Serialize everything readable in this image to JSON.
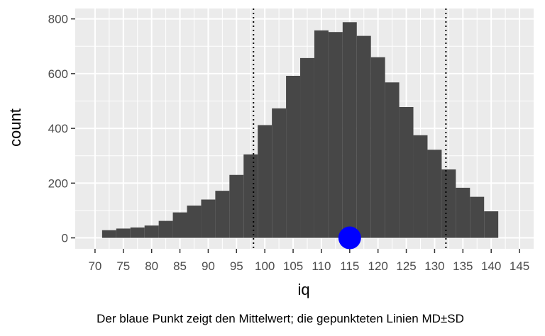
{
  "chart_data": {
    "type": "bar",
    "subtype": "histogram",
    "xlabel": "iq",
    "ylabel": "count",
    "caption": "Der blaue Punkt zeigt den Mittelwert; die gepunkteten Linien MD±SD",
    "xlim": [
      66.5,
      147.5
    ],
    "ylim": [
      -40,
      838
    ],
    "bin_width": 2.5,
    "bins": [
      {
        "x": 72.5,
        "count": 28
      },
      {
        "x": 75.0,
        "count": 34
      },
      {
        "x": 77.5,
        "count": 38
      },
      {
        "x": 80.0,
        "count": 45
      },
      {
        "x": 82.5,
        "count": 62
      },
      {
        "x": 85.0,
        "count": 93
      },
      {
        "x": 87.5,
        "count": 118
      },
      {
        "x": 90.0,
        "count": 140
      },
      {
        "x": 92.5,
        "count": 172
      },
      {
        "x": 95.0,
        "count": 230
      },
      {
        "x": 97.5,
        "count": 305
      },
      {
        "x": 100.0,
        "count": 412
      },
      {
        "x": 102.5,
        "count": 473
      },
      {
        "x": 105.0,
        "count": 592
      },
      {
        "x": 107.5,
        "count": 657
      },
      {
        "x": 110.0,
        "count": 758
      },
      {
        "x": 112.5,
        "count": 752
      },
      {
        "x": 115.0,
        "count": 788
      },
      {
        "x": 117.5,
        "count": 738
      },
      {
        "x": 120.0,
        "count": 660
      },
      {
        "x": 122.5,
        "count": 568
      },
      {
        "x": 125.0,
        "count": 478
      },
      {
        "x": 127.5,
        "count": 375
      },
      {
        "x": 130.0,
        "count": 322
      },
      {
        "x": 132.5,
        "count": 250
      },
      {
        "x": 135.0,
        "count": 183
      },
      {
        "x": 137.5,
        "count": 150
      },
      {
        "x": 140.0,
        "count": 97
      }
    ],
    "x_ticks": [
      70,
      75,
      80,
      85,
      90,
      95,
      100,
      105,
      110,
      115,
      120,
      125,
      130,
      135,
      140,
      145
    ],
    "x_tick_labels": [
      "70",
      "75",
      "80",
      "85",
      "90",
      "95",
      "100",
      "105",
      "110",
      "115",
      "120",
      "125",
      "130",
      "135",
      "140",
      "145"
    ],
    "y_ticks": [
      0,
      200,
      400,
      600,
      800
    ],
    "y_tick_labels": [
      "0",
      "200",
      "400",
      "600",
      "800"
    ],
    "mean_point": {
      "x": 115,
      "y": 0,
      "color": "#0000ff"
    },
    "sd_lines": [
      98,
      132
    ],
    "colors": {
      "panel": "#ebebeb",
      "grid_major": "#ffffff",
      "bar": "#474747",
      "tick": "#333333",
      "dotted_line": "#000000"
    }
  }
}
